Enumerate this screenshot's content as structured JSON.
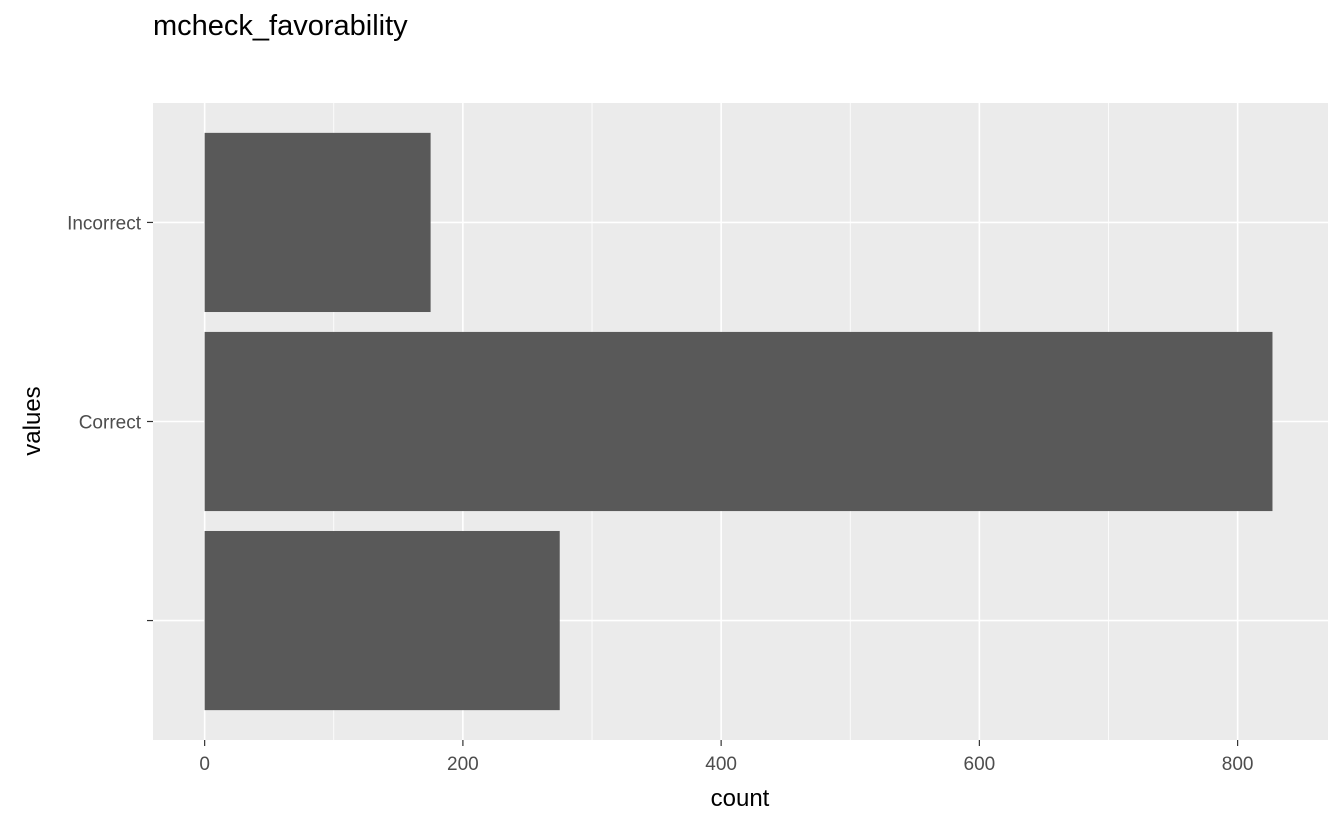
{
  "chart_data": {
    "type": "bar",
    "orientation": "horizontal",
    "title": "mcheck_favorability",
    "xlabel": "count",
    "ylabel": "values",
    "categories": [
      "",
      "Correct",
      "Incorrect"
    ],
    "values": [
      275,
      827,
      175
    ],
    "xlim": [
      -40,
      870
    ],
    "x_ticks": [
      0,
      200,
      400,
      600,
      800
    ],
    "x_minor": [
      100,
      300,
      500,
      700
    ],
    "grid": true,
    "legend": "none",
    "colors": {
      "bar": "#595959",
      "panel": "#ebebeb",
      "grid": "#ffffff",
      "tick_text": "#4d4d4d"
    }
  }
}
